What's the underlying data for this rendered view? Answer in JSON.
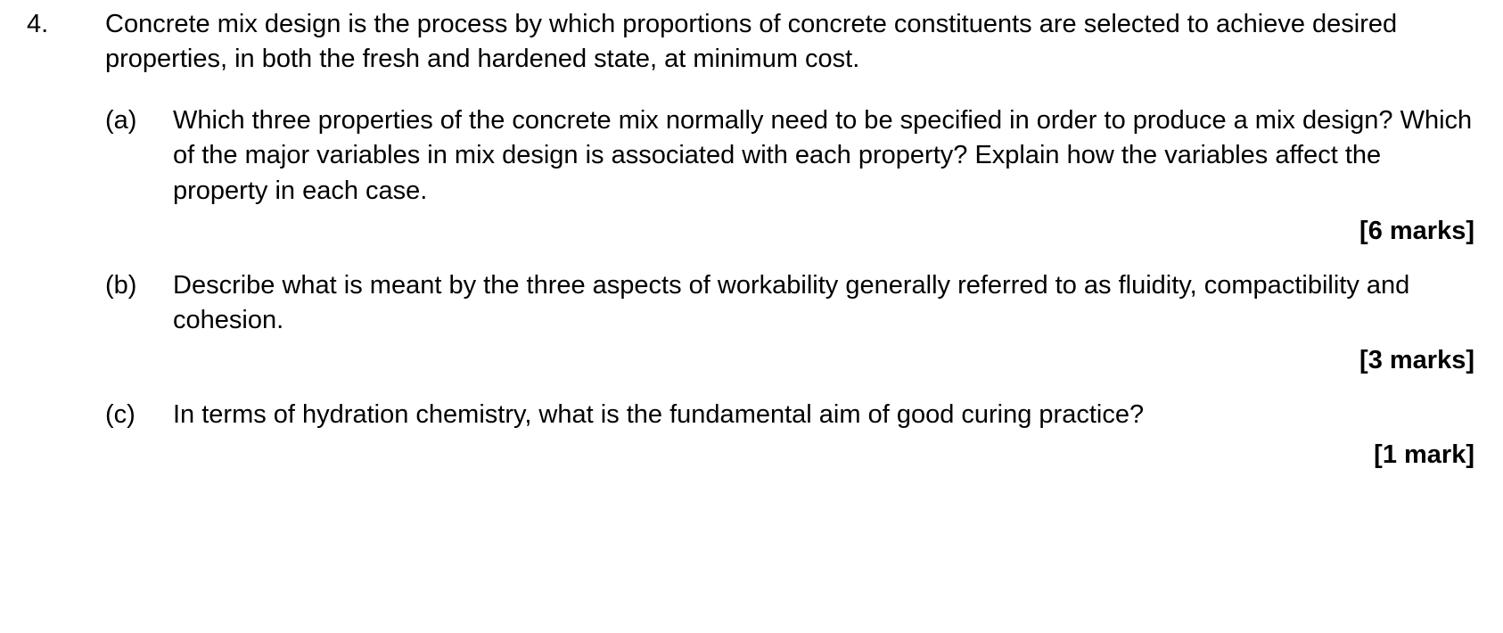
{
  "question": {
    "number": "4.",
    "intro": "Concrete mix design is the process by which proportions of concrete constituents are selected to achieve desired properties, in both the fresh and hardened state, at minimum cost.",
    "parts": [
      {
        "label": "(a)",
        "text": "Which three properties of the concrete mix normally need to be specified in order to produce a mix design? Which of the major variables in mix design is associated with each property? Explain how the variables affect the property in each case.",
        "marks": "[6 marks]"
      },
      {
        "label": "(b)",
        "text": "Describe what is meant by the three aspects of workability generally referred to as fluidity, compactibility and cohesion.",
        "marks": "[3 marks]"
      },
      {
        "label": "(c)",
        "text": "In terms of hydration chemistry, what is the fundamental aim of good curing practice?",
        "marks": "[1 mark]"
      }
    ]
  },
  "style": {
    "font_family": "Arial, Helvetica, sans-serif",
    "font_size_pt": 22,
    "text_color": "#000000",
    "background_color": "#ffffff",
    "marks_font_weight": "bold"
  }
}
